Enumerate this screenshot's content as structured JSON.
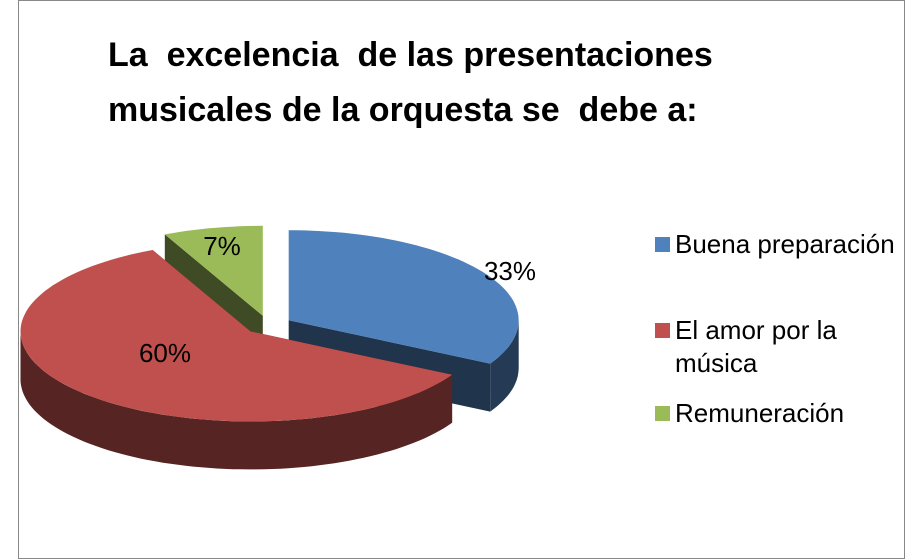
{
  "chart_data": {
    "type": "pie3d",
    "title": "La  excelencia  de las presentaciones musicales de la orquesta se  debe a:",
    "categories": [
      "Buena preparación",
      "El  amor por la música",
      "Remuneración"
    ],
    "values": [
      33,
      60,
      7
    ],
    "value_labels": [
      "33%",
      "60%",
      "7%"
    ],
    "colors": [
      "#4f81bd",
      "#c0504d",
      "#9bbb59"
    ],
    "legend": "right"
  }
}
